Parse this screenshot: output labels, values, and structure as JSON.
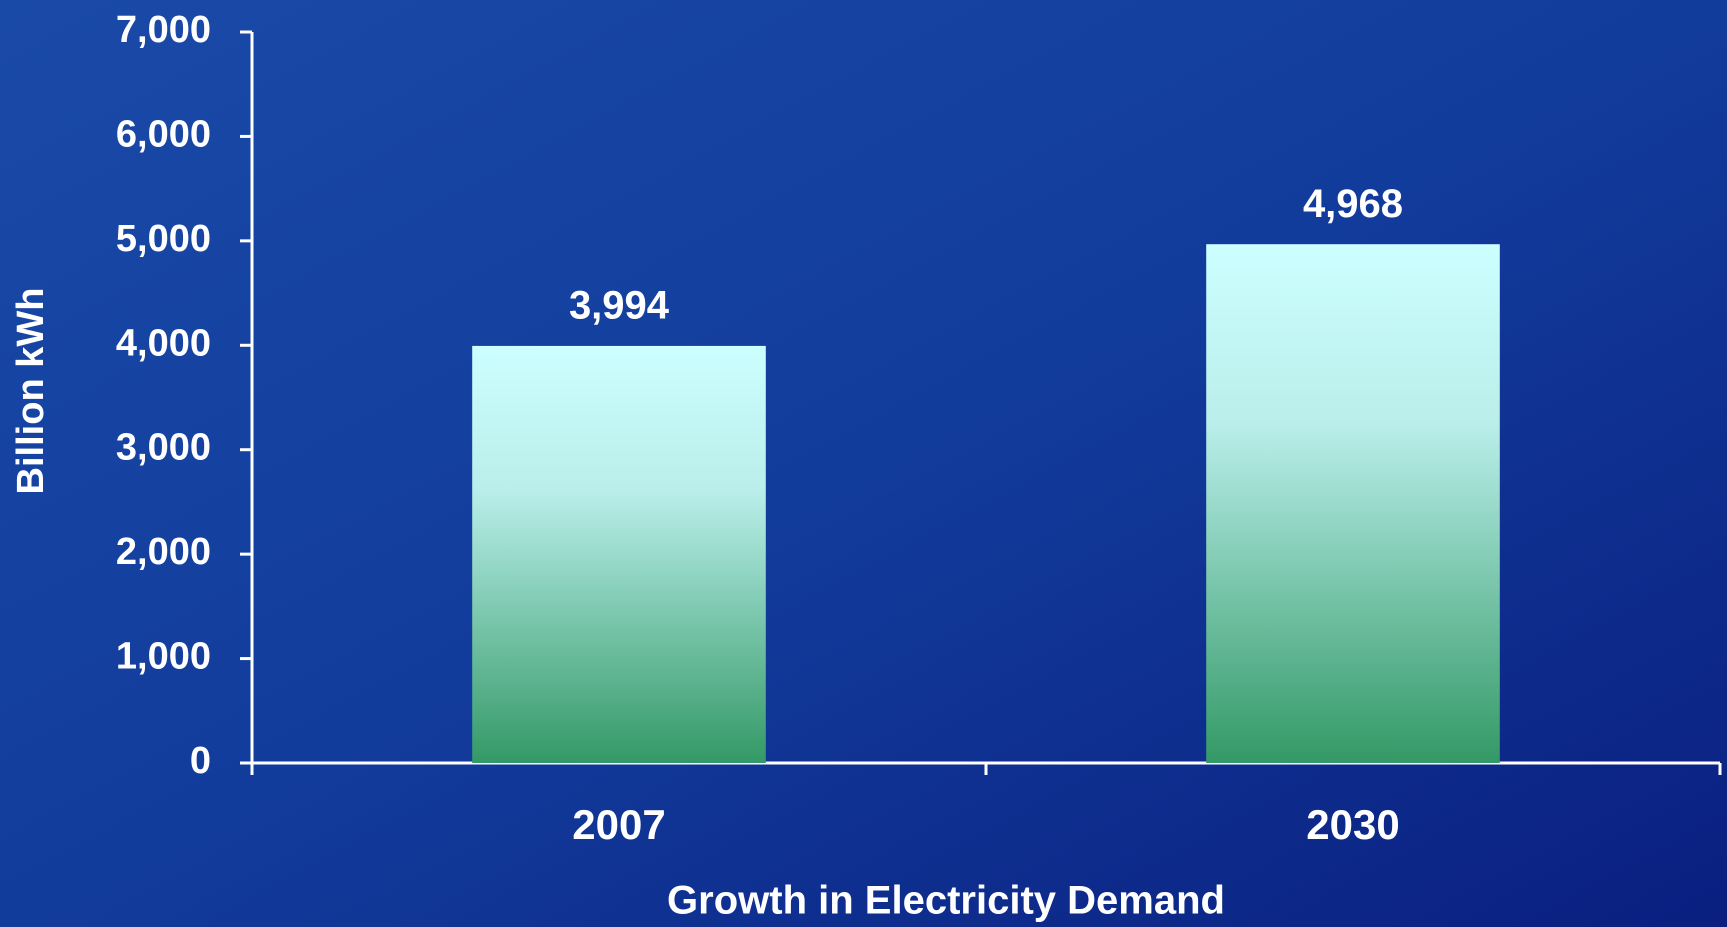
{
  "chart_data": {
    "type": "bar",
    "categories": [
      "2007",
      "2030"
    ],
    "values": [
      3994,
      4968
    ],
    "value_labels": [
      "3,994",
      "4,968"
    ],
    "xlabel": "Growth in Electricity Demand",
    "ylabel": "Billion kWh",
    "ylim": [
      0,
      7000
    ],
    "yticks": [
      0,
      {
        "value": 1000,
        "label": "1,000"
      },
      {
        "value": 2000,
        "label": "2,000"
      },
      {
        "value": 3000,
        "label": "3,000"
      },
      {
        "value": 4000,
        "label": "4,000"
      },
      {
        "value": 5000,
        "label": "5,000"
      },
      {
        "value": 6000,
        "label": "6,000"
      },
      {
        "value": 7000,
        "label": "7,000"
      }
    ],
    "color": [
      "#ccffff",
      "#339966"
    ]
  }
}
